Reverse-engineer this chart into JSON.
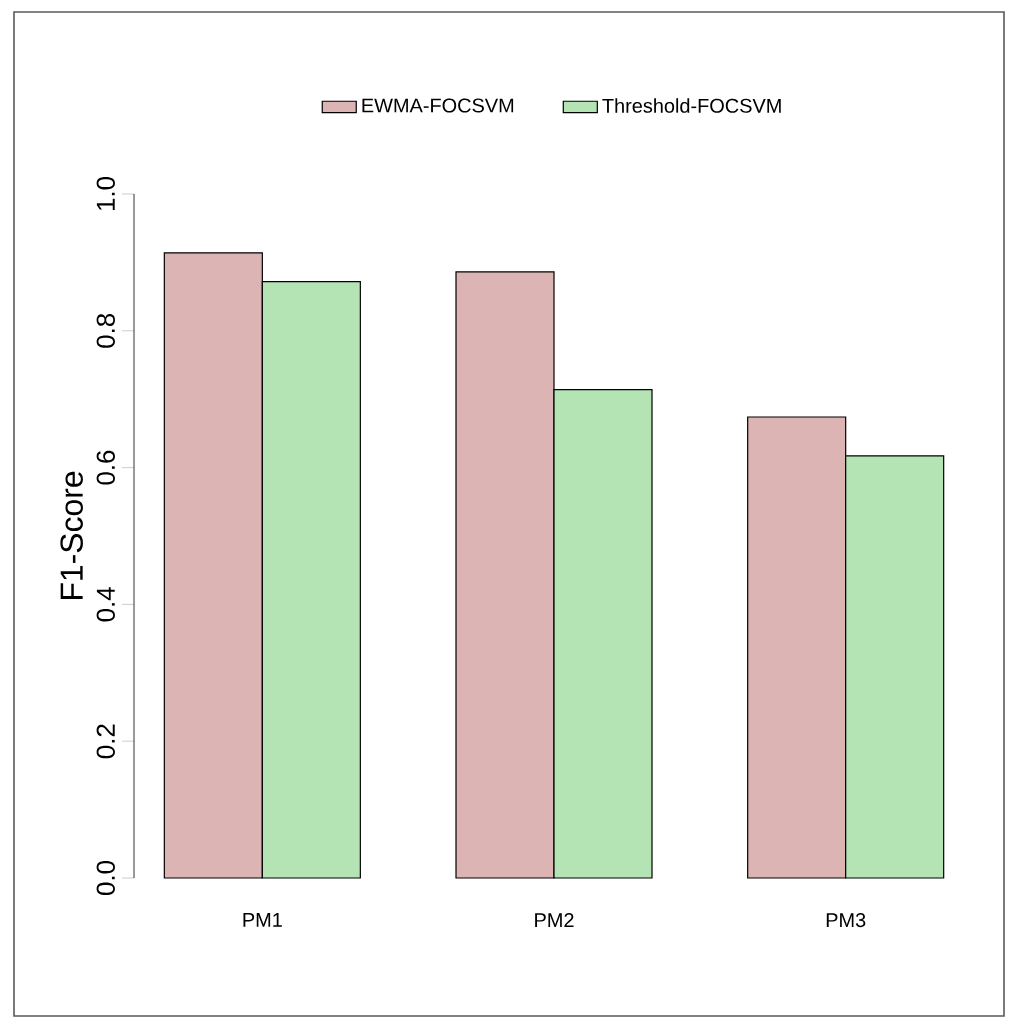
{
  "chart_data": {
    "type": "bar",
    "ylabel": "F1-Score",
    "categories": [
      "PM1",
      "PM2",
      "PM3"
    ],
    "series": [
      {
        "name": "EWMA-FOCSVM",
        "color": "#dcb4b4",
        "values": [
          0.914,
          0.886,
          0.674
        ]
      },
      {
        "name": "Threshold-FOCSVM",
        "color": "#b4e4b4",
        "values": [
          0.872,
          0.714,
          0.617
        ]
      }
    ],
    "ylim": [
      0,
      1
    ],
    "yticks": [
      {
        "value": 0,
        "label": "0.0"
      },
      0.2,
      0.4,
      0.6,
      0.8,
      {
        "value": 1,
        "label": "1.0"
      }
    ],
    "legend": "top"
  }
}
